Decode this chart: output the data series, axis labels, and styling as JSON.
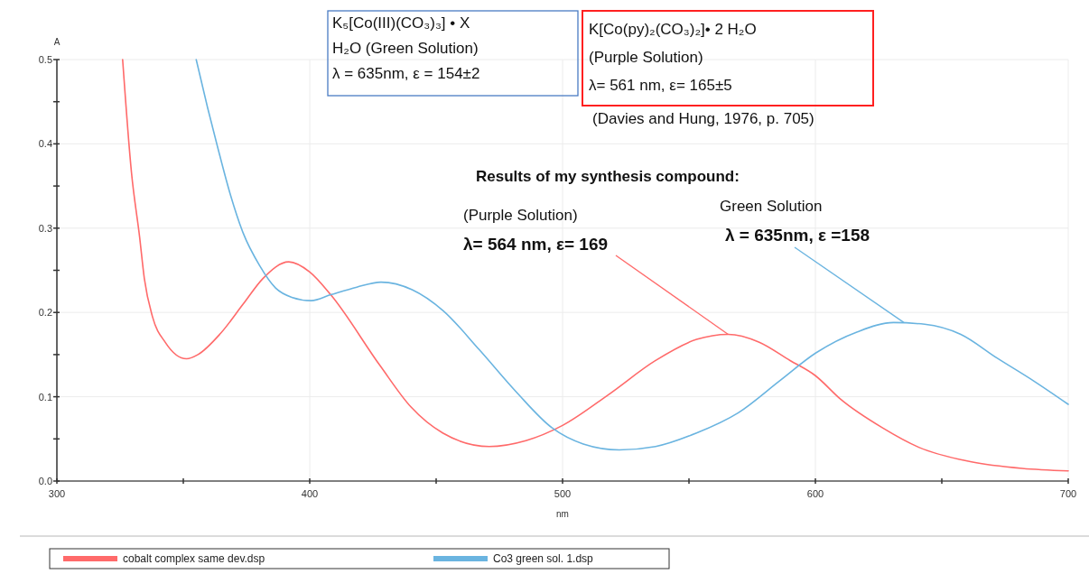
{
  "chart_data": {
    "type": "line",
    "xlabel": "nm",
    "ylabel": "A",
    "xlim": [
      300,
      700
    ],
    "ylim": [
      0,
      0.5
    ],
    "xticks": [
      300,
      {
        "value": 350,
        "label": null
      },
      400,
      {
        "value": 450,
        "label": null
      },
      500,
      {
        "value": 550,
        "label": null
      },
      600,
      {
        "value": 650,
        "label": null
      },
      700
    ],
    "yticks": [
      {
        "value": 0,
        "label": "0.0"
      },
      {
        "value": 0.05,
        "label": null
      },
      0.1,
      {
        "value": 0.15,
        "label": null
      },
      0.2,
      {
        "value": 0.25,
        "label": null
      },
      0.3,
      {
        "value": 0.35,
        "label": null
      },
      0.4,
      {
        "value": 0.45,
        "label": null
      },
      0.5
    ],
    "grid": true,
    "legend": "bottom",
    "marker": "none",
    "line_style": "solid",
    "series": [
      {
        "name": "cobalt complex same dev.dsp",
        "color": "#ff6a6a",
        "x": [
          326,
          329.5,
          332.7,
          334.6,
          337.8,
          343,
          351.3,
          355.8,
          364.7,
          373.7,
          381.4,
          391.7,
          400,
          408.3,
          427.8,
          440,
          452.6,
          471,
          485.5,
          500,
          518.4,
          536.8,
          553,
          565.5,
          577.6,
          590,
          600,
          610,
          626.6,
          640.9,
          661.3,
          681.8,
          700
        ],
        "values": [
          0.5,
          0.366,
          0.29,
          0.24,
          0.195,
          0.164,
          0.145,
          0.15,
          0.175,
          0.21,
          0.24,
          0.26,
          0.248,
          0.221,
          0.137,
          0.088,
          0.057,
          0.041,
          0.048,
          0.066,
          0.103,
          0.143,
          0.168,
          0.174,
          0.165,
          0.143,
          0.125,
          0.097,
          0.063,
          0.04,
          0.023,
          0.015,
          0.012
        ]
      },
      {
        "name": "Co3 green sol. 1.dsp",
        "color": "#6ab4e0",
        "x": [
          355.1,
          359.6,
          363.5,
          368.6,
          373.7,
          380.1,
          386.5,
          392.9,
          400.6,
          408.3,
          418.6,
          428.2,
          440.5,
          452.8,
          467,
          481.6,
          495.9,
          508.2,
          522.5,
          536.8,
          553,
          569.5,
          585.9,
          600.2,
          616.6,
          630.9,
          643.2,
          657.5,
          671.8,
          686.2,
          700
        ],
        "values": [
          0.5,
          0.443,
          0.397,
          0.34,
          0.294,
          0.256,
          0.229,
          0.218,
          0.214,
          0.221,
          0.23,
          0.236,
          0.227,
          0.202,
          0.156,
          0.106,
          0.063,
          0.044,
          0.037,
          0.041,
          0.057,
          0.081,
          0.119,
          0.152,
          0.177,
          0.188,
          0.186,
          0.174,
          0.146,
          0.119,
          0.091
        ]
      }
    ],
    "annotations": [
      "K₅[Co(III)(CO₃)₃] • X\nH₂O (Green Solution)\nλ = 635nm, ε = 154±2",
      "K[Co(py)₂(CO₃)₂]• 2 H₂O\n(Purple Solution)\nλ= 561 nm, ε= 165±5",
      "(Davies and Hung, 1976, p. 705)",
      "Results of my synthesis compound:",
      "(Purple Solution)",
      {
        "text": "λ= 564 nm, ε= 169",
        "x": 565.5,
        "y": 0.174
      },
      "Green Solution",
      {
        "text": "λ = 635nm, ε =158",
        "x": 635,
        "y": 0.188
      }
    ]
  }
}
